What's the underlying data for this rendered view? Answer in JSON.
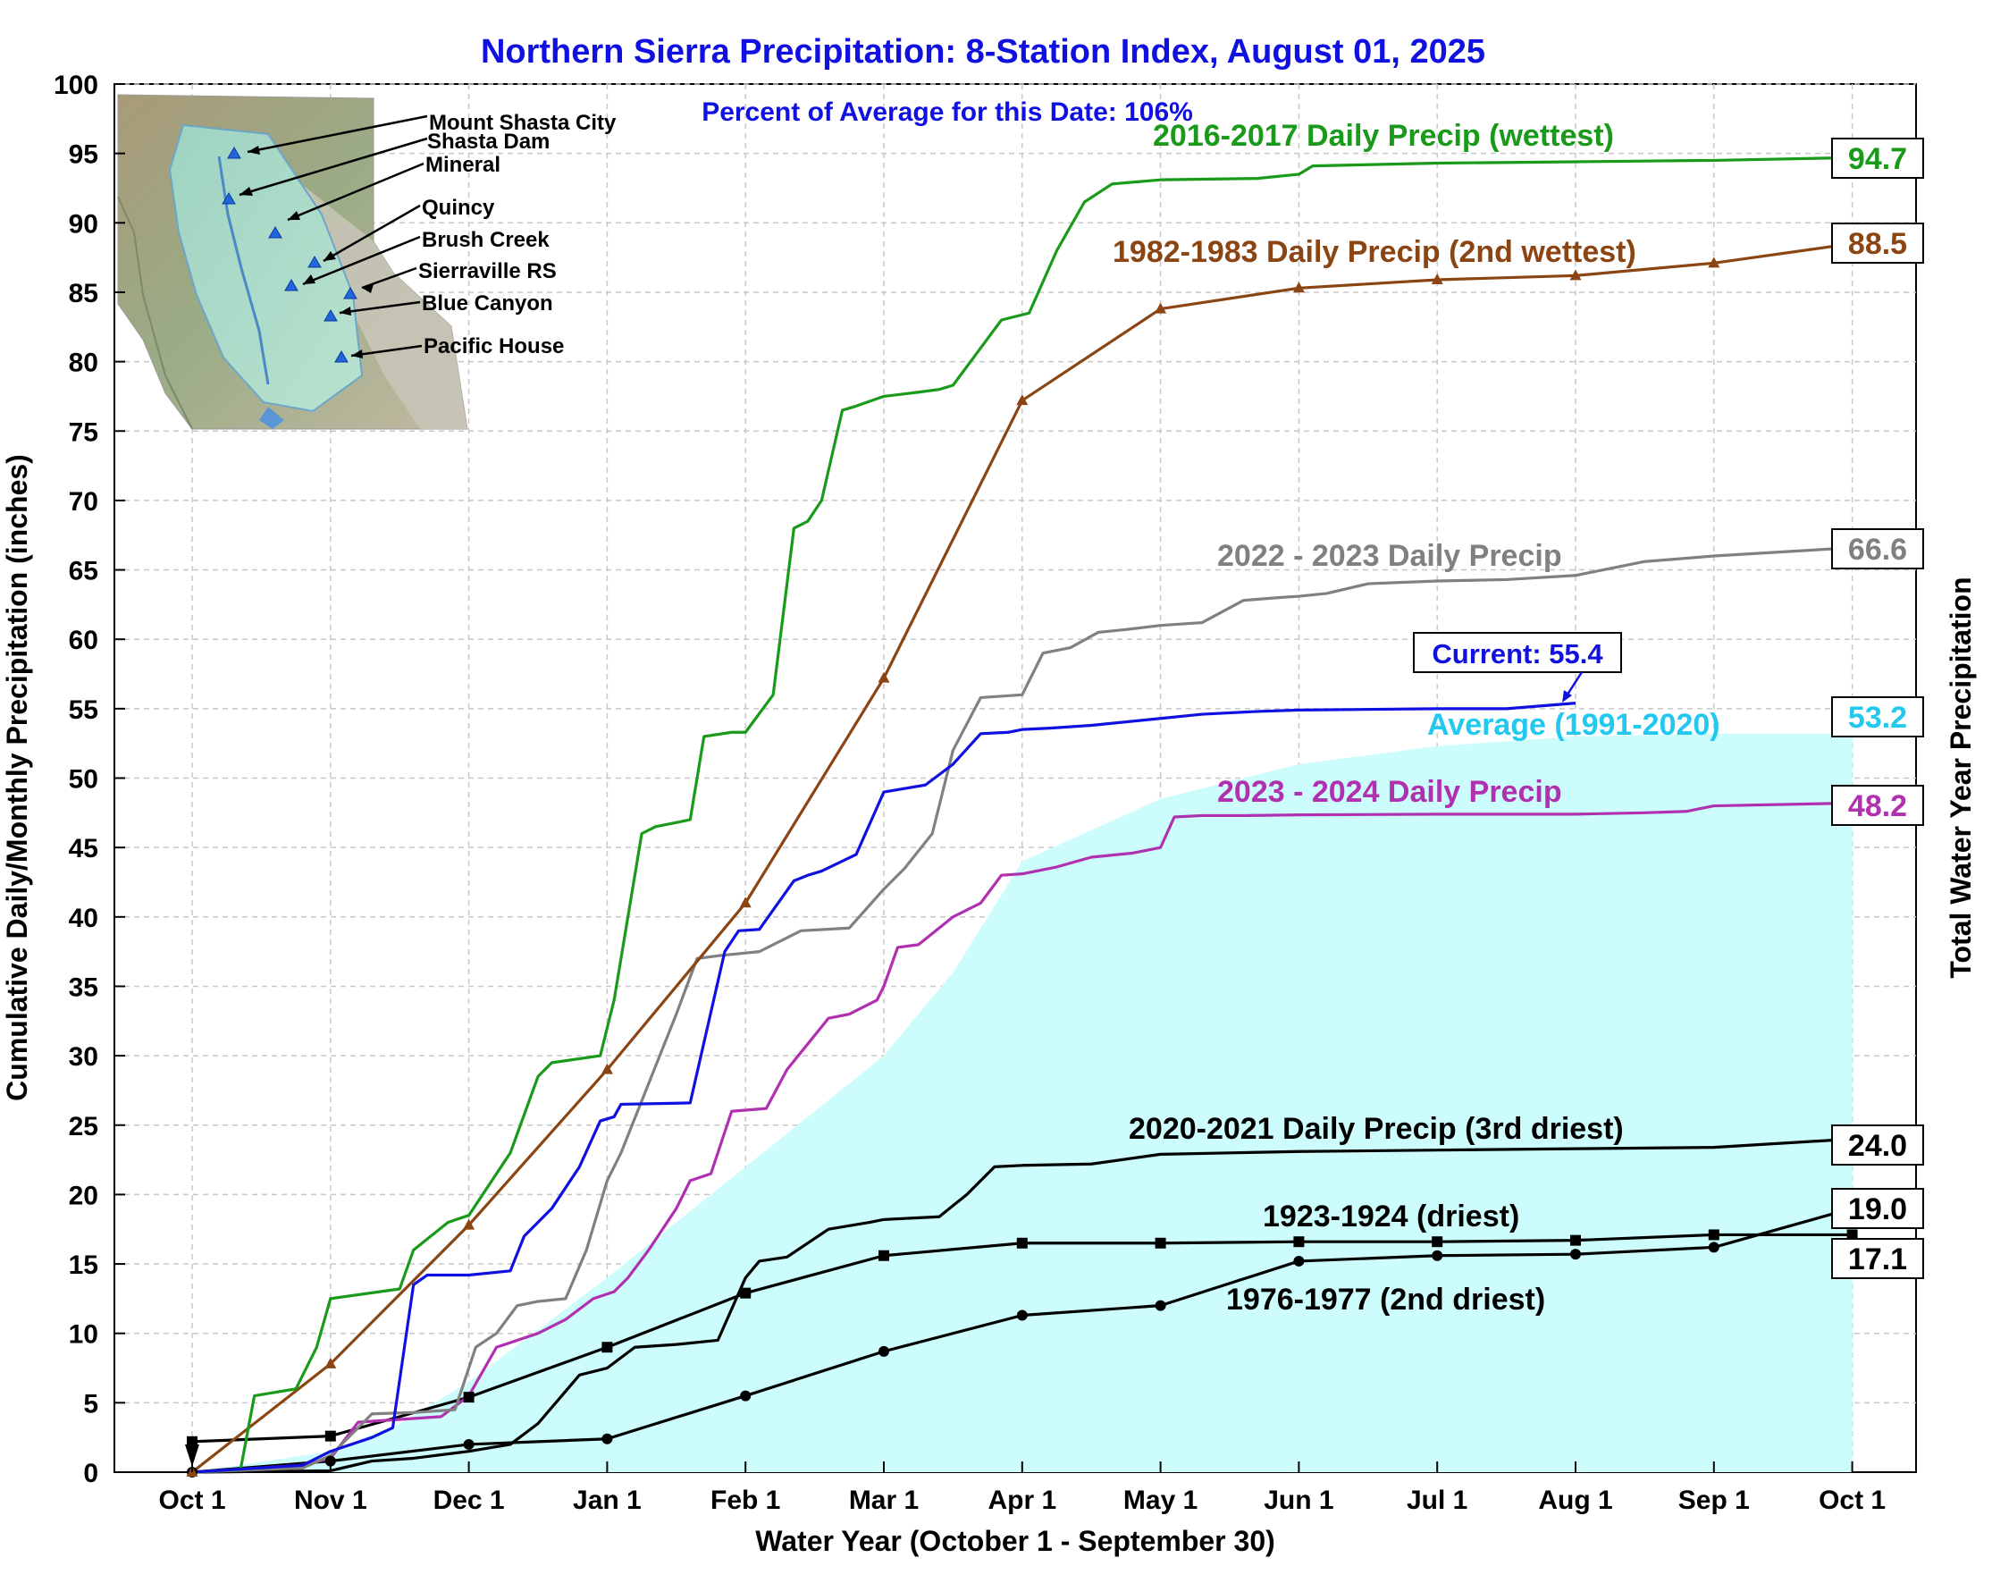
{
  "chart_data": {
    "type": "line",
    "title": "Northern Sierra Precipitation: 8-Station Index, August 01, 2025",
    "subtitle": "Percent of Average for this Date: 106%",
    "xlabel": "Water Year (October 1 - September 30)",
    "ylabel": "Cumulative Daily/Monthly Precipitation (inches)",
    "ylabel_right": "Total Water Year Precipitation",
    "x_ticks": [
      "Oct 1",
      "Nov 1",
      "Dec 1",
      "Jan 1",
      "Feb 1",
      "Mar 1",
      "Apr 1",
      "May 1",
      "Jun 1",
      "Jul 1",
      "Aug 1",
      "Sep 1",
      "Oct 1"
    ],
    "y_ticks": [
      "0",
      "5",
      "10",
      "15",
      "20",
      "25",
      "30",
      "35",
      "40",
      "45",
      "50",
      "55",
      "60",
      "65",
      "70",
      "75",
      "80",
      "85",
      "90",
      "95",
      "100"
    ],
    "ylim": [
      0,
      100
    ],
    "grid": true,
    "average": {
      "name": "Average (1991-2020)",
      "end_value": "53.2",
      "color": "#ccfcfc",
      "label_color": "#22c8ee",
      "x": [
        0,
        1,
        1.5,
        2,
        3,
        4,
        5,
        5.5,
        6,
        7,
        8,
        9,
        10,
        11,
        12
      ],
      "y": [
        0,
        1.5,
        3.5,
        6.5,
        14,
        22,
        30,
        36,
        44,
        48.5,
        51,
        52.3,
        53,
        53.2,
        53.2
      ]
    },
    "series": [
      {
        "name": "2016-2017 Daily Precip (wettest)",
        "color": "#1a9a1a",
        "end_value": "94.7",
        "marker": "none",
        "x": [
          0,
          0.35,
          0.45,
          0.75,
          0.9,
          1.0,
          1.5,
          1.6,
          1.85,
          2.0,
          2.3,
          2.5,
          2.6,
          2.95,
          3.05,
          3.15,
          3.25,
          3.35,
          3.6,
          3.7,
          3.9,
          4.0,
          4.2,
          4.35,
          4.45,
          4.55,
          4.7,
          4.8,
          5.0,
          5.25,
          5.4,
          5.5,
          5.85,
          6.05,
          6.25,
          6.45,
          6.65,
          7.0,
          7.7,
          8.0,
          8.1,
          9.0,
          10.0,
          11.0,
          12.0
        ],
        "y": [
          0,
          0.2,
          5.5,
          6,
          9,
          12.5,
          13.2,
          16,
          18,
          18.5,
          23,
          28.5,
          29.5,
          30,
          34,
          40,
          46,
          46.5,
          47,
          53,
          53.3,
          53.3,
          56,
          68,
          68.5,
          70,
          76.5,
          76.8,
          77.5,
          77.8,
          78,
          78.3,
          83,
          83.5,
          88,
          91.5,
          92.8,
          93.1,
          93.2,
          93.5,
          94.1,
          94.3,
          94.4,
          94.5,
          94.7
        ]
      },
      {
        "name": "1982-1983 Daily Precip (2nd wettest)",
        "color": "#8b4513",
        "end_value": "88.5",
        "marker": "triangle",
        "x": [
          0,
          1,
          2,
          3,
          4,
          5,
          6,
          7,
          8,
          9,
          10,
          11,
          12
        ],
        "y": [
          0,
          7.8,
          17.8,
          29,
          41,
          57.2,
          77.2,
          83.8,
          85.3,
          85.9,
          86.2,
          87.1,
          88.5
        ]
      },
      {
        "name": "2022 - 2023 Daily Precip",
        "color": "#808080",
        "end_value": "66.6",
        "marker": "none",
        "x": [
          0,
          0.8,
          1.0,
          1.3,
          1.6,
          1.9,
          2.05,
          2.2,
          2.35,
          2.5,
          2.7,
          2.85,
          3.0,
          3.1,
          3.3,
          3.5,
          3.65,
          3.8,
          4.0,
          4.1,
          4.4,
          4.75,
          5.0,
          5.15,
          5.35,
          5.5,
          5.7,
          6.0,
          6.15,
          6.35,
          6.55,
          6.75,
          7.0,
          7.3,
          7.6,
          7.85,
          8.0,
          8.2,
          8.5,
          9.0,
          9.5,
          10.0,
          10.5,
          11.0,
          11.5,
          12.0
        ],
        "y": [
          0,
          0.3,
          1.2,
          4.2,
          4.3,
          4.5,
          9,
          10,
          12,
          12.3,
          12.5,
          16,
          21,
          23,
          28,
          33,
          37,
          37.2,
          37.4,
          37.5,
          39,
          39.2,
          42,
          43.5,
          46,
          52,
          55.8,
          56,
          59,
          59.4,
          60.5,
          60.7,
          61,
          61.2,
          62.8,
          63.0,
          63.1,
          63.3,
          64,
          64.2,
          64.3,
          64.6,
          65.6,
          66.0,
          66.3,
          66.6
        ]
      },
      {
        "name": "Current",
        "label": "Current: 55.4",
        "color": "#1010e0",
        "end_value": "55.4",
        "marker": "none",
        "x": [
          0,
          0.8,
          1.0,
          1.3,
          1.45,
          1.6,
          1.7,
          2.0,
          2.3,
          2.4,
          2.6,
          2.8,
          2.95,
          3.05,
          3.1,
          3.6,
          3.85,
          3.95,
          4.1,
          4.35,
          4.45,
          4.55,
          4.8,
          5.0,
          5.3,
          5.5,
          5.7,
          5.9,
          6.0,
          6.2,
          6.5,
          7.0,
          7.3,
          7.7,
          8.0,
          9.0,
          9.5,
          10.0
        ],
        "y": [
          0,
          0.5,
          1.5,
          2.5,
          3.2,
          13.5,
          14.2,
          14.2,
          14.5,
          17,
          19,
          22,
          25.3,
          25.6,
          26.5,
          26.6,
          37.5,
          39,
          39.1,
          42.6,
          43,
          43.3,
          44.5,
          49,
          49.5,
          51,
          53.2,
          53.3,
          53.5,
          53.6,
          53.8,
          54.3,
          54.6,
          54.8,
          54.9,
          55.0,
          55.0,
          55.4
        ]
      },
      {
        "name": "2023 - 2024 Daily Precip",
        "color": "#b030b0",
        "end_value": "48.2",
        "marker": "none",
        "x": [
          0,
          0.8,
          1.0,
          1.2,
          1.5,
          1.8,
          2.0,
          2.2,
          2.5,
          2.7,
          2.9,
          3.05,
          3.15,
          3.3,
          3.5,
          3.6,
          3.75,
          3.9,
          4.15,
          4.3,
          4.6,
          4.75,
          4.95,
          5.0,
          5.1,
          5.25,
          5.5,
          5.7,
          5.85,
          6.0,
          6.25,
          6.5,
          6.8,
          7.0,
          7.1,
          7.3,
          7.6,
          8.0,
          9.0,
          10.0,
          10.5,
          10.8,
          11.0,
          11.5,
          12.0
        ],
        "y": [
          0,
          0.5,
          1.0,
          3.6,
          3.8,
          4.0,
          5.5,
          9,
          10,
          11,
          12.5,
          13,
          14,
          16,
          19,
          21,
          21.5,
          26,
          26.2,
          29,
          32.7,
          33,
          34,
          35,
          37.8,
          38,
          40,
          41,
          43,
          43.1,
          43.6,
          44.3,
          44.6,
          45,
          47.2,
          47.3,
          47.3,
          47.35,
          47.4,
          47.4,
          47.5,
          47.6,
          48.0,
          48.1,
          48.2
        ]
      },
      {
        "name": "2020-2021 Daily Precip (3rd driest)",
        "color": "#000000",
        "end_value": "24.0",
        "marker": "none",
        "x": [
          0,
          1.0,
          1.3,
          1.6,
          2.0,
          2.3,
          2.5,
          2.8,
          3.0,
          3.2,
          3.5,
          3.8,
          4.0,
          4.1,
          4.3,
          4.6,
          4.9,
          5.0,
          5.4,
          5.6,
          5.8,
          6.0,
          6.5,
          7.0,
          7.5,
          8.0,
          9.0,
          10.0,
          11.0,
          12.0
        ],
        "y": [
          0,
          0.1,
          0.8,
          1.0,
          1.5,
          2.0,
          3.5,
          7.0,
          7.5,
          9.0,
          9.2,
          9.5,
          14,
          15.2,
          15.5,
          17.5,
          18,
          18.2,
          18.4,
          20,
          22,
          22.1,
          22.2,
          22.9,
          23.0,
          23.1,
          23.2,
          23.3,
          23.4,
          24.0
        ]
      },
      {
        "name": "1923-1924 (driest)",
        "color": "#000000",
        "end_value": "17.1",
        "marker": "square",
        "x": [
          0,
          1,
          2,
          3,
          4,
          5,
          6,
          7,
          8,
          9,
          10,
          11,
          12
        ],
        "y": [
          2.2,
          2.6,
          5.4,
          9,
          12.9,
          15.6,
          16.5,
          16.5,
          16.6,
          16.6,
          16.7,
          17.1,
          17.1
        ]
      },
      {
        "name": "1976-1977 (2nd driest)",
        "color": "#000000",
        "end_value": "19.0",
        "marker": "circle",
        "x": [
          0,
          1,
          2,
          3,
          4,
          5,
          6,
          7,
          8,
          9,
          10,
          11,
          12
        ],
        "y": [
          0,
          0.8,
          2.0,
          2.4,
          5.5,
          8.7,
          11.3,
          12.0,
          15.2,
          15.6,
          15.7,
          16.2,
          19.0
        ]
      }
    ]
  },
  "inset_map": {
    "stations": [
      "Mount Shasta City",
      "Shasta Dam",
      "Mineral",
      "Quincy",
      "Brush Creek",
      "Sierraville RS",
      "Blue Canyon",
      "Pacific House"
    ]
  }
}
